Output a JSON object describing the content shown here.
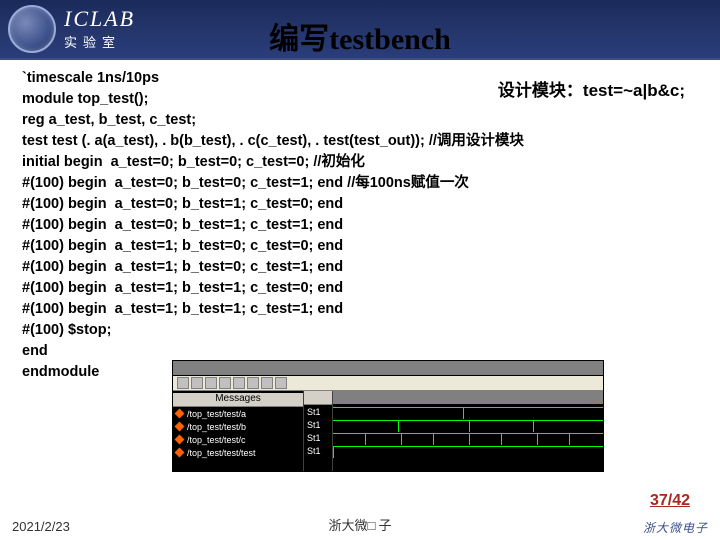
{
  "header": {
    "logo_main": "ICLAB",
    "logo_sub": "实验室"
  },
  "title": {
    "cn": "编写",
    "en": "testbench"
  },
  "note": "设计模块：test=~a|b&c;",
  "code": [
    "`timescale 1ns/10ps",
    "module top_test();",
    "reg a_test, b_test, c_test;",
    "test test (. a(a_test), . b(b_test), . c(c_test), . test(test_out)); //调用设计模块",
    "initial begin  a_test=0; b_test=0; c_test=0; //初始化",
    "#(100) begin  a_test=0; b_test=0; c_test=1; end //每100ns赋值一次",
    "#(100) begin  a_test=0; b_test=1; c_test=0; end",
    "#(100) begin  a_test=0; b_test=1; c_test=1; end",
    "#(100) begin  a_test=1; b_test=0; c_test=0; end",
    "#(100) begin  a_test=1; b_test=0; c_test=1; end",
    "#(100) begin  a_test=1; b_test=1; c_test=0; end",
    "#(100) begin  a_test=1; b_test=1; c_test=1; end",
    "#(100) $stop;",
    "end",
    "endmodule"
  ],
  "wave": {
    "messages_label": "Messages",
    "signals": [
      "/top_test/test/a",
      "/top_test/test/b",
      "/top_test/test/c",
      "/top_test/test/test"
    ],
    "values": [
      "St1",
      "St1",
      "St1",
      "St1"
    ],
    "toolbar_icons": 8
  },
  "page_num": "37/42",
  "footer": {
    "date": "2021/2/23",
    "center": "浙大微□ 子",
    "right": "浙大微电子"
  },
  "colors": {
    "header_bg": "#26376e",
    "accent": "#a82820",
    "diamond": "#ff6000",
    "wave_line": "#00ff00"
  }
}
